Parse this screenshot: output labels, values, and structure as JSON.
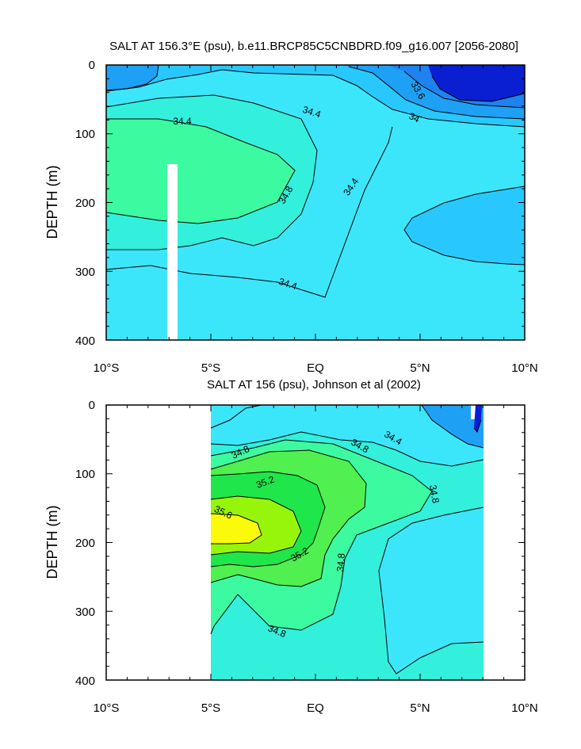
{
  "figure": {
    "background": "#ffffff"
  },
  "colors": {
    "s_33_6_and_below": "#0a1ed2",
    "s_33_6_to_34_0": "#1e82f0",
    "s_34_0_to_34_2": "#1ea0f5",
    "s_34_2_to_34_4": "#28c8ff",
    "s_34_4_to_34_6": "#3ce6fa",
    "s_34_6_to_34_8": "#32f0dc",
    "s_34_8_to_35_0": "#3cfaa0",
    "s_35_0_to_35_2": "#50f050",
    "s_35_2_to_35_4": "#1ee64b",
    "s_35_4_to_35_6": "#96f50a",
    "s_35_6_and_above": "#fafa0a"
  },
  "chart_data": [
    {
      "type": "contour",
      "title": "SALT AT 156.3°E (psu), b.e11.BRCP85C5CNBDRD.f09_g16.007 [2056-2080]",
      "ylabel": "DEPTH (m)",
      "xlabel": "",
      "xlim": [
        "10°S",
        "10°N"
      ],
      "x_tick_labels": [
        "10°S",
        "5°S",
        "EQ",
        "5°N",
        "10°N"
      ],
      "ylim": [
        400,
        0
      ],
      "y_tick_labels": [
        "0",
        "100",
        "200",
        "300",
        "400"
      ],
      "y_reversed": true,
      "contour_labels": [
        "34.4",
        "34.4",
        "33.6",
        "34",
        "34.8",
        "34.4",
        "34.4"
      ],
      "regions": [
        {
          "salinity_range": "< 33.6",
          "location": "5°N–10°N, 0–50 m"
        },
        {
          "salinity_range": "34.0–34.2",
          "location": "5°N–10°N, 0–90 m"
        },
        {
          "salinity_range": "34.2–34.4",
          "location": "surface layer 0–40 m; lens 4°N–10°N at 200–280 m"
        },
        {
          "salinity_range": "34.6–34.8",
          "location": "10°S–4°S, 130–230 m (salinity maximum core)"
        },
        {
          "salinity_range": "34.4–34.6",
          "location": "bulk of section below 60 m"
        }
      ],
      "masked_columns": [
        {
          "x_from": "7.1°S",
          "x_to": "6.6°S",
          "depth_from": 140,
          "depth_to": 400
        }
      ]
    },
    {
      "type": "contour",
      "title": "SALT AT 156 (psu), Johnson et al (2002)",
      "ylabel": "DEPTH (m)",
      "xlabel": "",
      "xlim": [
        "10°S",
        "10°N"
      ],
      "x_tick_labels": [
        "10°S",
        "5°S",
        "EQ",
        "5°N",
        "10°N"
      ],
      "ylim": [
        400,
        0
      ],
      "y_tick_labels": [
        "0",
        "100",
        "200",
        "300",
        "400"
      ],
      "y_reversed": true,
      "data_extent": [
        "5°S",
        "8°N"
      ],
      "contour_labels": [
        "34.8",
        "34.8",
        "34.4",
        "35.2",
        "34.8",
        "35.6",
        "35.2",
        "34.8",
        "34.8"
      ],
      "regions": [
        {
          "salinity_range": "34.0–34.4",
          "location": "5°N–8°N, 0–60 m"
        },
        {
          "salinity_range": "34.4–34.6",
          "location": "surface 0–50 m; 3°N–8°N at 160–340 m"
        },
        {
          "salinity_range": "34.6–34.8",
          "location": "upper and lower margins of the section"
        },
        {
          "salinity_range": "35.0–35.2",
          "location": "5°S–2°N, 100–240 m"
        },
        {
          "salinity_range": "35.2–35.6",
          "location": "5°S–1°S, 120–220 m"
        },
        {
          "salinity_range": "> 35.6",
          "location": "5°S–3°S, 160–190 m (salinity maximum core)"
        }
      ]
    }
  ]
}
